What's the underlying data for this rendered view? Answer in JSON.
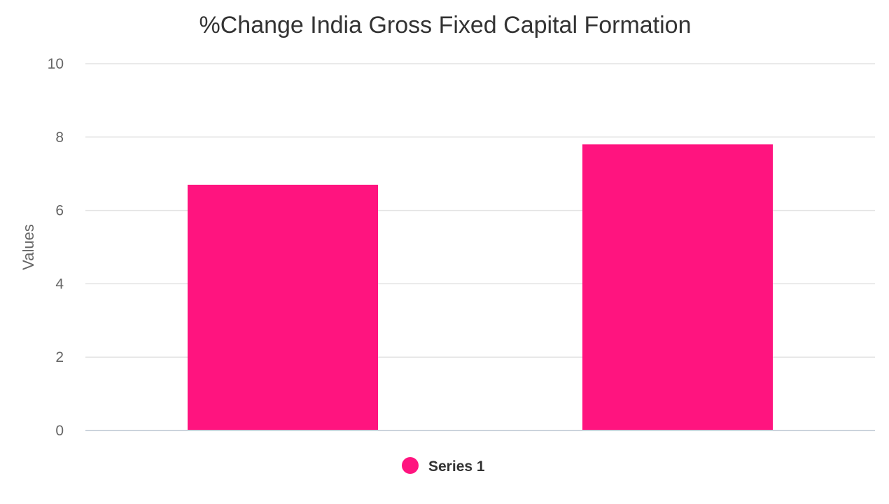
{
  "chart_data": {
    "type": "bar",
    "title": "%Change India Gross Fixed Capital Formation",
    "xlabel": "",
    "ylabel": "Values",
    "categories": [
      "",
      ""
    ],
    "series": [
      {
        "name": "Series 1",
        "color": "#ff147f",
        "values": [
          6.7,
          7.8
        ]
      }
    ],
    "ylim": [
      0,
      10
    ],
    "yticks": [
      0,
      2,
      4,
      6,
      8,
      10
    ],
    "grid": true,
    "legend_position": "bottom-center"
  }
}
